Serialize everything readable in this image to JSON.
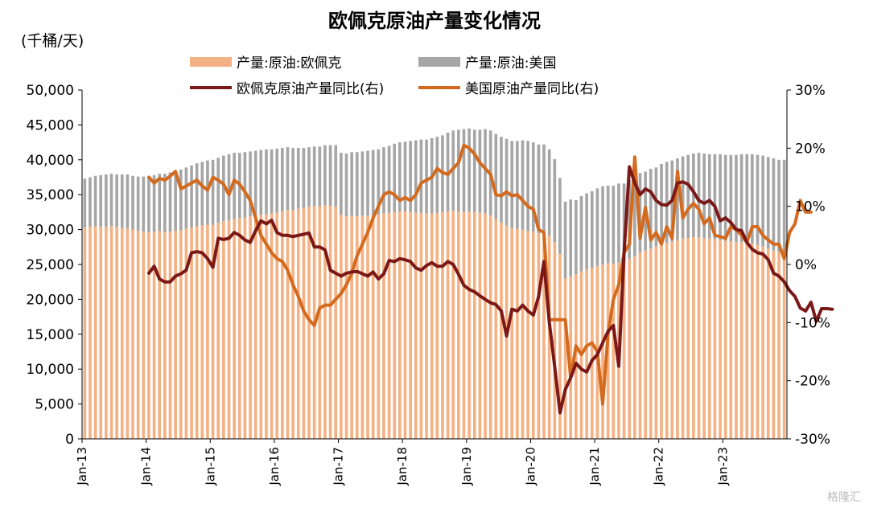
{
  "chart_data": {
    "type": "bar",
    "title": "欧佩克原油产量变化情况",
    "unit_label": "(千桶/天)",
    "legend": [
      {
        "label": "产量:原油:欧佩克",
        "kind": "bar",
        "color": "#F4B183"
      },
      {
        "label": "产量:原油:美国",
        "kind": "bar",
        "color": "#A6A6A6"
      },
      {
        "label": "欧佩克原油产量同比(右)",
        "kind": "line",
        "color": "#7B1818"
      },
      {
        "label": "美国原油产量同比(右)",
        "kind": "line",
        "color": "#D46A1E"
      }
    ],
    "x_ticks": [
      "Jan-13",
      "Jan-14",
      "Jan-15",
      "Jan-16",
      "Jan-17",
      "Jan-18",
      "Jan-19",
      "Jan-20",
      "Jan-21",
      "Jan-22",
      "Jan-23"
    ],
    "y_left": {
      "min": 0,
      "max": 50000,
      "ticks": [
        "0",
        "5,000",
        "10,000",
        "15,000",
        "20,000",
        "25,000",
        "30,000",
        "35,000",
        "40,000",
        "45,000",
        "50,000"
      ]
    },
    "y_right": {
      "min": -30,
      "max": 30,
      "ticks": [
        "-30%",
        "-20%",
        "-10%",
        "0%",
        "10%",
        "20%",
        "30%"
      ]
    },
    "start_month": "Jan-13",
    "series": [
      {
        "name": "产量:原油:欧佩克",
        "type": "stacked_bar",
        "values": [
          30300,
          30400,
          30500,
          30400,
          30400,
          30500,
          30400,
          30300,
          30200,
          30000,
          29800,
          29700,
          29600,
          29700,
          29800,
          29600,
          29700,
          29800,
          29900,
          30100,
          30300,
          30500,
          30600,
          30700,
          30700,
          31000,
          31200,
          31300,
          31500,
          31600,
          31700,
          31900,
          32000,
          32100,
          32200,
          32300,
          32400,
          32600,
          32800,
          32800,
          33000,
          33100,
          33300,
          33400,
          33300,
          33500,
          33400,
          33300,
          32100,
          31900,
          32000,
          31900,
          32000,
          32000,
          32100,
          32200,
          32300,
          32400,
          32500,
          32600,
          32600,
          32500,
          32400,
          32400,
          32300,
          32300,
          32400,
          32500,
          32600,
          32700,
          32600,
          32500,
          32600,
          32500,
          32400,
          32300,
          32000,
          31500,
          31000,
          30600,
          30200,
          30100,
          30000,
          29800,
          29700,
          29500,
          29400,
          29100,
          28200,
          26500,
          23000,
          23300,
          23600,
          24000,
          24300,
          24500,
          24800,
          25000,
          25200,
          25100,
          25300,
          25500,
          25800,
          26200,
          26700,
          27000,
          27300,
          27600,
          27900,
          28100,
          28300,
          28500,
          28700,
          28800,
          28900,
          28900,
          28800,
          28700,
          28600,
          28500,
          28400,
          28300,
          28200,
          28200,
          28100,
          28000,
          27800,
          27600,
          27300,
          27000,
          26800,
          26700
        ]
      },
      {
        "name": "产量:原油:美国",
        "type": "stacked_bar",
        "values": [
          7000,
          7100,
          7200,
          7400,
          7500,
          7500,
          7500,
          7600,
          7700,
          7700,
          7800,
          7900,
          8000,
          8100,
          8200,
          8400,
          8500,
          8600,
          8700,
          8800,
          8900,
          9000,
          9100,
          9200,
          9300,
          9300,
          9400,
          9500,
          9500,
          9400,
          9400,
          9300,
          9300,
          9300,
          9300,
          9200,
          9200,
          9100,
          9000,
          8900,
          8700,
          8600,
          8500,
          8500,
          8600,
          8600,
          8700,
          8800,
          8900,
          9000,
          9100,
          9200,
          9200,
          9300,
          9300,
          9300,
          9500,
          9600,
          9800,
          9900,
          10000,
          10200,
          10400,
          10500,
          10600,
          10800,
          10900,
          11000,
          11300,
          11500,
          11700,
          11900,
          11900,
          11800,
          11900,
          12100,
          12200,
          12200,
          12300,
          12400,
          12500,
          12600,
          12800,
          12900,
          12800,
          12700,
          12800,
          12400,
          11900,
          10900,
          11000,
          11000,
          10600,
          10800,
          10900,
          11000,
          11100,
          11200,
          11100,
          11200,
          11300,
          11100,
          11300,
          11300,
          11400,
          11300,
          11400,
          11300,
          11500,
          11600,
          11600,
          11700,
          11800,
          11900,
          12000,
          12100,
          12100,
          12100,
          12200,
          12300,
          12300,
          12400,
          12500,
          12600,
          12700,
          12800,
          12900,
          13000,
          13100,
          13200,
          13200,
          13300
        ]
      },
      {
        "name": "欧佩克原油产量同比(右)",
        "type": "line",
        "axis": "right",
        "start_index": 12,
        "values": [
          -1.5,
          -0.3,
          -2.5,
          -3.0,
          -3.0,
          -2.0,
          -1.6,
          -1.0,
          2.0,
          2.2,
          2.0,
          1.0,
          -0.5,
          4.5,
          4.3,
          4.5,
          5.5,
          5.0,
          4.2,
          3.8,
          5.8,
          7.5,
          7.0,
          7.6,
          5.5,
          5.0,
          5.0,
          4.8,
          5.0,
          5.2,
          5.4,
          3.0,
          3.0,
          2.5,
          -1.0,
          -1.5,
          -2.0,
          -1.5,
          -1.3,
          -1.2,
          -1.6,
          -2.0,
          -1.3,
          -2.5,
          -1.6,
          0.7,
          0.5,
          1.0,
          0.8,
          0.5,
          -0.6,
          -1.0,
          -0.2,
          0.3,
          -0.3,
          -0.3,
          0.5,
          0.0,
          -1.7,
          -3.6,
          -4.3,
          -4.7,
          -5.4,
          -6.0,
          -6.6,
          -6.9,
          -8.0,
          -12.3,
          -7.7,
          -8.0,
          -7.0,
          -8.0,
          -8.7,
          -5.5,
          0.5,
          -10.0,
          -17.5,
          -25.5,
          -21.5,
          -19.5,
          -17.0,
          -18.0,
          -18.5,
          -16.5,
          -15.5,
          -13.5,
          -11.5,
          -10.5,
          -17.5,
          2.0,
          16.8,
          14.0,
          12.0,
          13.0,
          12.5,
          11.0,
          10.3,
          10.2,
          11.0,
          14.0,
          14.2,
          13.8,
          12.5,
          11.0,
          10.5,
          11.0,
          10.0,
          7.5,
          8.0,
          7.2,
          6.0,
          5.8,
          3.8,
          2.6,
          2.0,
          1.8,
          0.8,
          -1.5,
          -2.0,
          -3.0,
          -4.5,
          -5.5,
          -7.5,
          -8.0,
          -6.5,
          -9.8,
          -7.6,
          -7.6,
          -7.7
        ]
      },
      {
        "name": "美国原油产量同比(右)",
        "type": "line",
        "axis": "right",
        "start_index": 12,
        "values": [
          15.0,
          14.0,
          14.8,
          14.5,
          15.2,
          16.0,
          13.0,
          13.5,
          14.0,
          14.5,
          13.5,
          12.8,
          15.0,
          14.5,
          13.8,
          12.0,
          14.5,
          13.8,
          12.5,
          11.0,
          8.0,
          5.0,
          3.5,
          2.0,
          1.0,
          0.5,
          -1.0,
          -3.5,
          -5.5,
          -8.0,
          -9.5,
          -10.5,
          -7.5,
          -7.0,
          -7.0,
          -6.0,
          -5.0,
          -3.5,
          -1.5,
          1.5,
          3.5,
          5.5,
          8.0,
          10.0,
          12.0,
          12.5,
          12.0,
          11.0,
          11.5,
          11.0,
          12.0,
          14.0,
          14.5,
          15.0,
          16.5,
          15.8,
          15.5,
          16.5,
          17.5,
          20.5,
          20.0,
          19.0,
          17.5,
          16.5,
          15.5,
          12.0,
          11.8,
          12.5,
          11.8,
          12.0,
          11.0,
          10.0,
          9.5,
          6.0,
          5.5,
          -9.5,
          -9.5,
          -9.5,
          -9.5,
          -19.5,
          -14.0,
          -15.5,
          -14.0,
          -13.5,
          -15.0,
          -24.0,
          -12.0,
          -6.0,
          -3.5,
          2.0,
          3.5,
          18.5,
          4.5,
          9.8,
          4.2,
          5.5,
          3.5,
          6.5,
          4.5,
          16.0,
          8.0,
          9.5,
          10.5,
          9.5,
          7.0,
          8.0,
          5.0,
          4.8,
          4.5,
          6.5,
          6.0,
          5.0,
          3.8,
          6.5,
          6.5,
          5.0,
          4.2,
          3.5,
          3.5,
          1.0,
          5.5,
          7.0,
          11.0,
          9.0,
          9.0
        ]
      }
    ]
  },
  "watermark": "格隆汇"
}
